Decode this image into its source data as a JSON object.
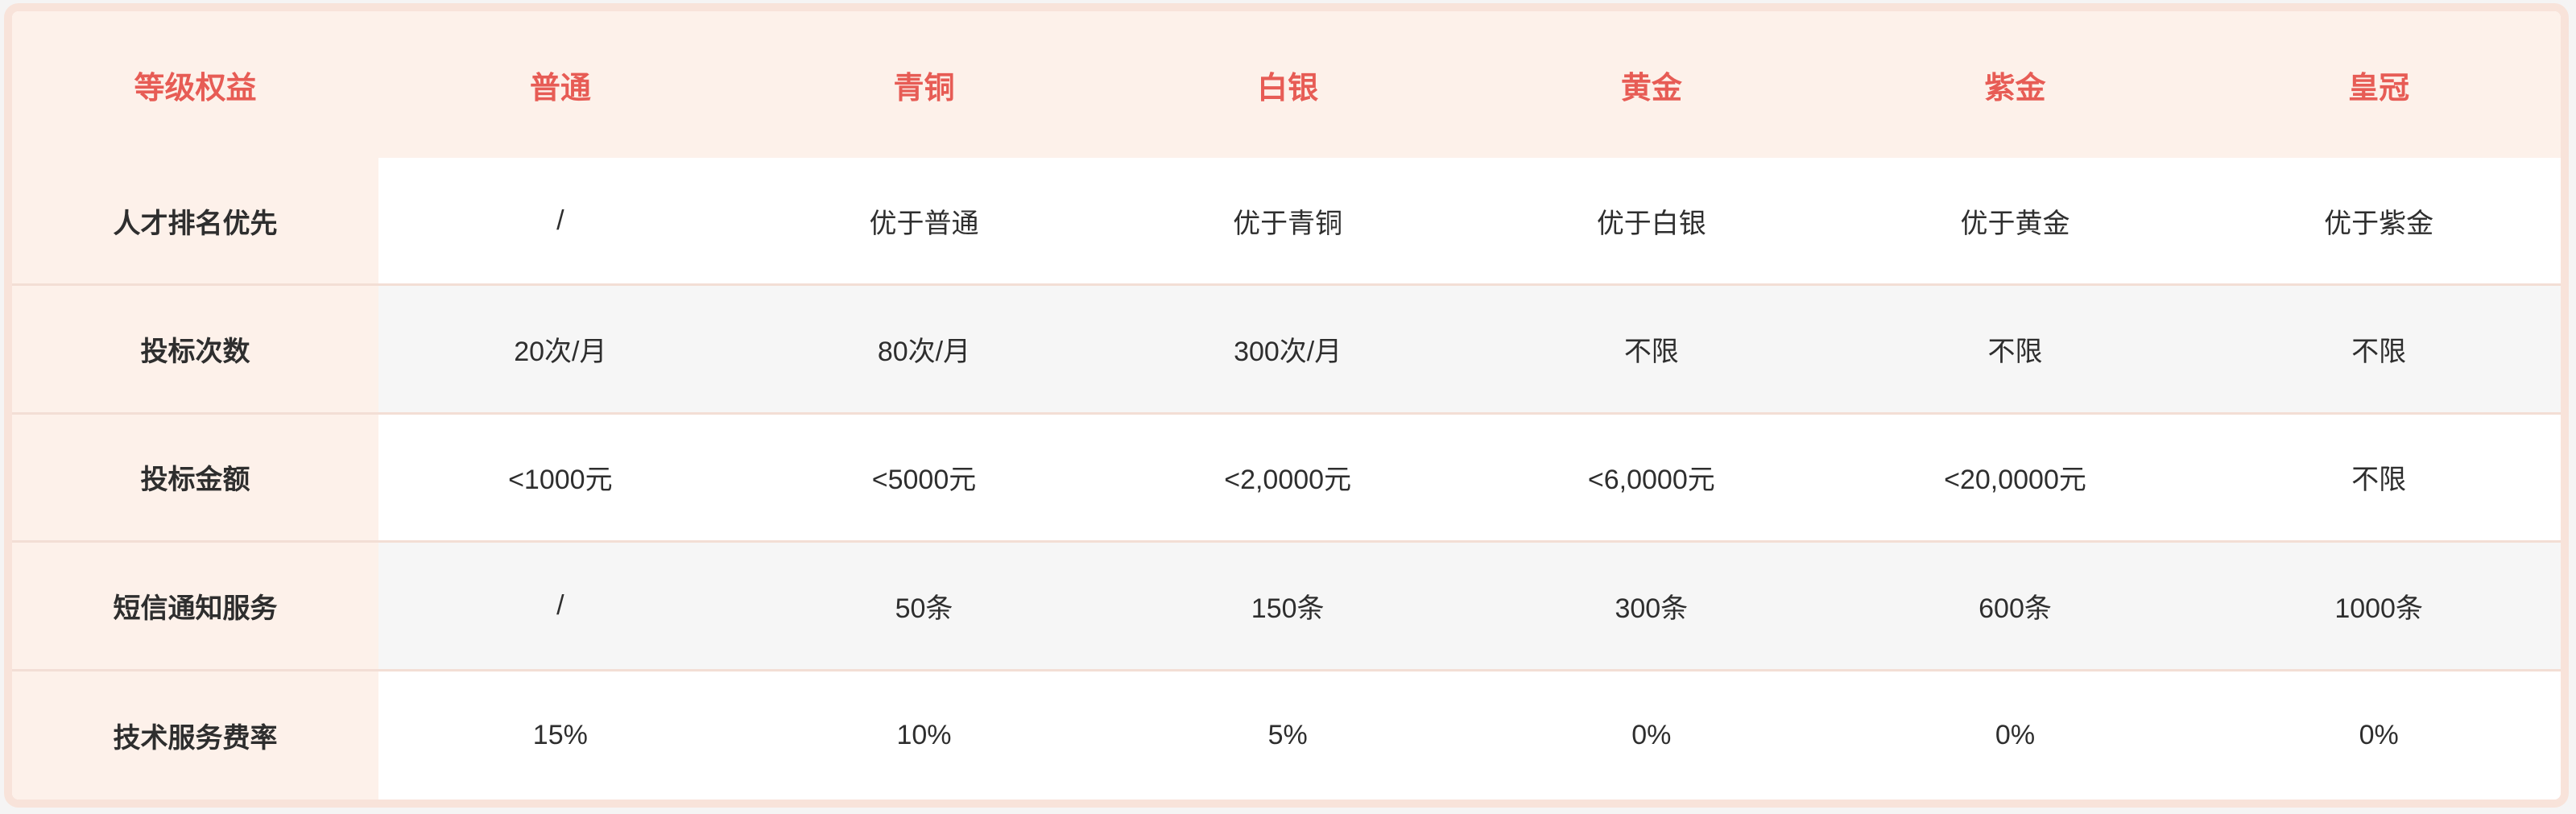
{
  "colors": {
    "accent": "#e75c55",
    "header_bg": "#fdf1ea",
    "frame": "#f8e3da",
    "alt_row_bg": "#f6f6f6",
    "divider": "#f3ded5",
    "text": "#2e2e2e",
    "page_bg": "#f5f4f4"
  },
  "table": {
    "header": {
      "benefits_label": "等级权益",
      "tiers": [
        "普通",
        "青铜",
        "白银",
        "黄金",
        "紫金",
        "皇冠"
      ]
    },
    "rows": [
      {
        "label": "人才排名优先",
        "values": [
          "/",
          "优于普通",
          "优于青铜",
          "优于白银",
          "优于黄金",
          "优于紫金"
        ]
      },
      {
        "label": "投标次数",
        "values": [
          "20次/月",
          "80次/月",
          "300次/月",
          "不限",
          "不限",
          "不限"
        ]
      },
      {
        "label": "投标金额",
        "values": [
          "<1000元",
          "<5000元",
          "<2,0000元",
          "<6,0000元",
          "<20,0000元",
          "不限"
        ]
      },
      {
        "label": "短信通知服务",
        "values": [
          "/",
          "50条",
          "150条",
          "300条",
          "600条",
          "1000条"
        ]
      },
      {
        "label": "技术服务费率",
        "values": [
          "15%",
          "10%",
          "5%",
          "0%",
          "0%",
          "0%"
        ]
      }
    ]
  }
}
